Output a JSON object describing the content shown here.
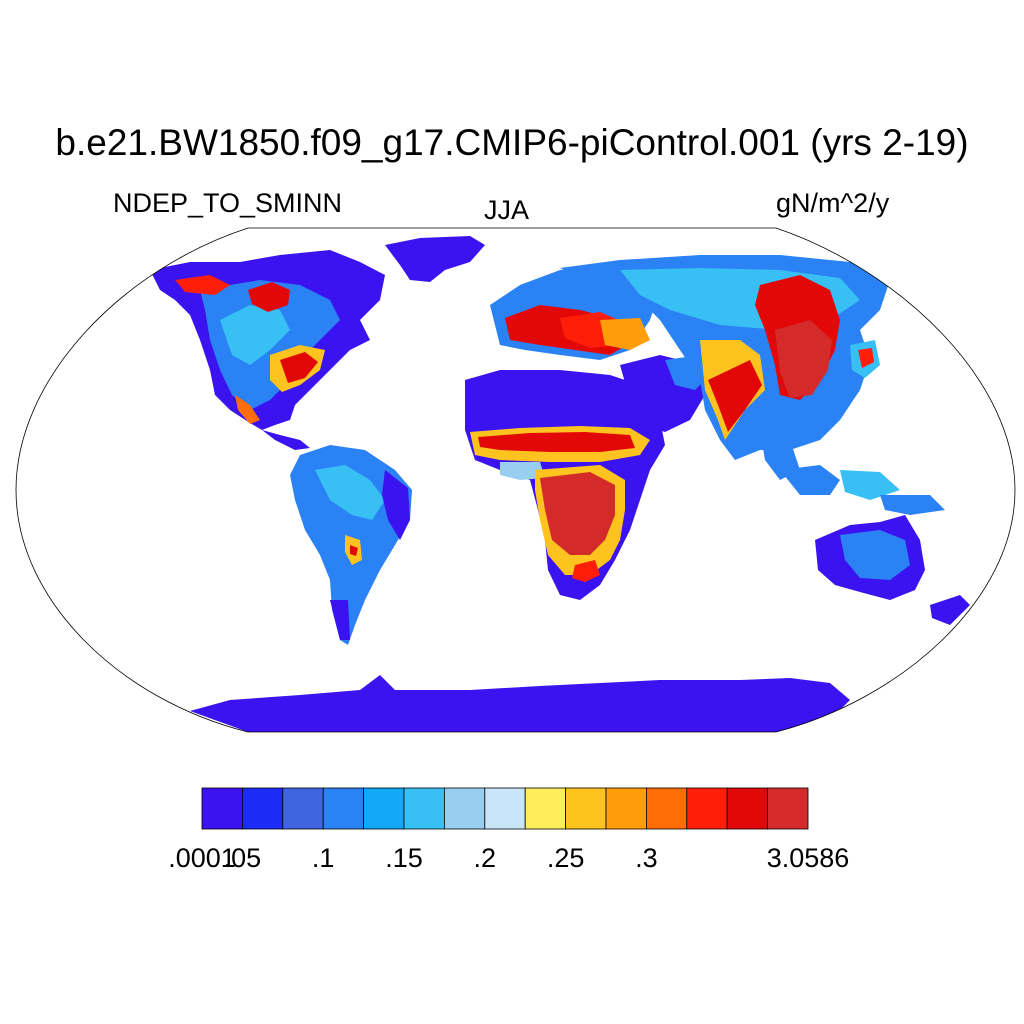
{
  "title": "b.e21.BW1850.f09_g17.CMIP6-piControl.001 (yrs 2-19)",
  "left_subtitle": "NDEP_TO_SMINN",
  "center_subtitle": "JJA",
  "right_subtitle": "gN/m^2/y",
  "colorbar": {
    "colors": [
      "#3b12f0",
      "#1a2cf5",
      "#3f66e0",
      "#2a82f5",
      "#12a8f8",
      "#38c0f5",
      "#98cff0",
      "#c9e6f8",
      "#ffed5c",
      "#ffc31f",
      "#ff9e0a",
      "#ff6e06",
      "#ff1e0a",
      "#e30808",
      "#d42a2a"
    ],
    "labels": [
      ".0001",
      ".05",
      ".1",
      ".15",
      ".2",
      ".25",
      ".3",
      "3.0586"
    ],
    "label_boundaries": [
      0,
      1,
      3,
      5,
      7,
      9,
      11,
      15
    ]
  },
  "map": {
    "projection": "Robinson",
    "ocean_color": "#ffffff"
  }
}
